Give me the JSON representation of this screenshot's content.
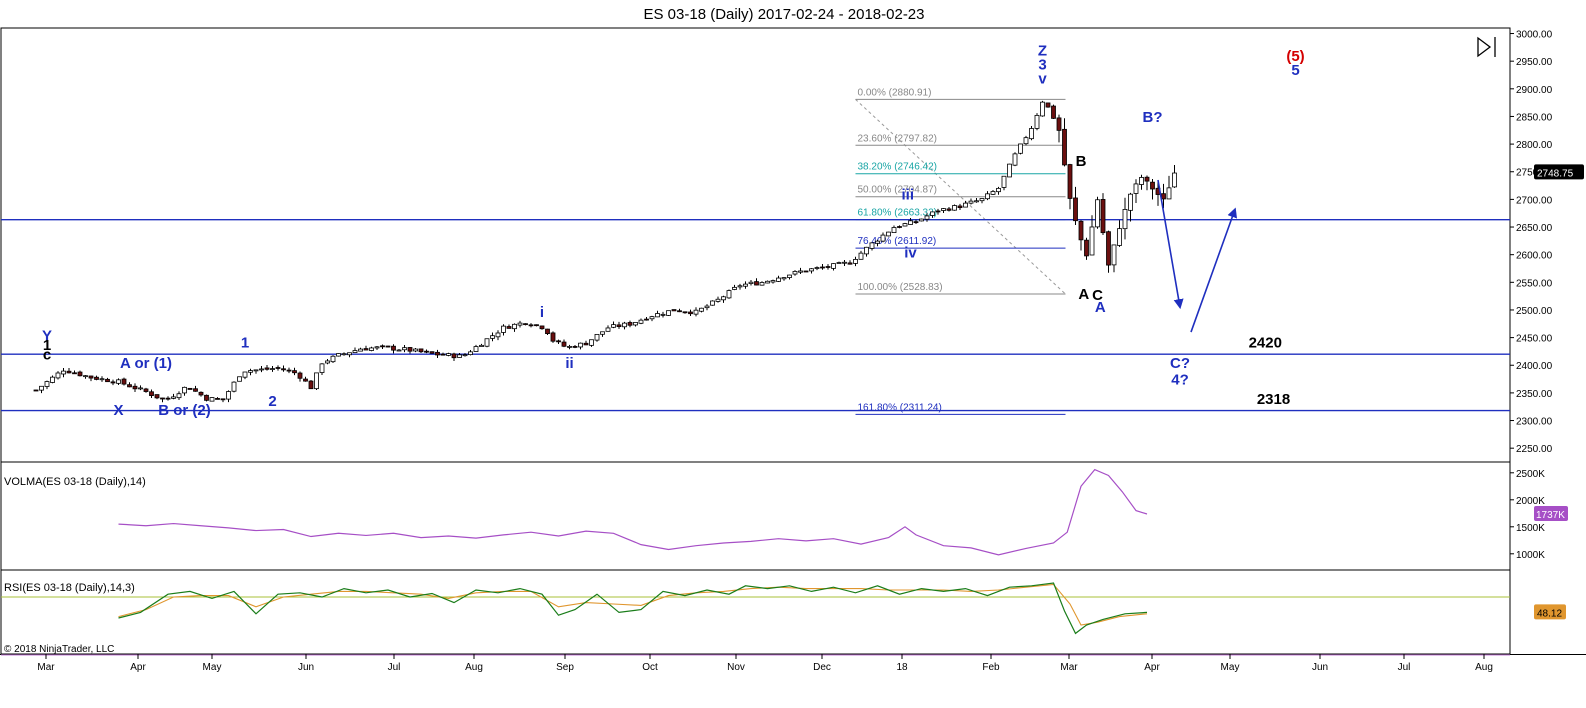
{
  "title": "ES 03-18 (Daily)  2017-02-24 - 2018-02-23",
  "copyright": "© 2018 NinjaTrader, LLC",
  "colors": {
    "wave_label": "#1f2fbf",
    "wave_label_red": "#d40000",
    "hline": "#1f2fbf",
    "fib_gray": "#888888",
    "fib_teal": "#19a5a5",
    "volma": "#a64fc6",
    "rsi_green": "#1a7d1a",
    "rsi_orange": "#e0962e",
    "rsi_upper": "#a8c23a",
    "rsi_lower": "#c47ad8",
    "candle_up": "#ffffff",
    "candle_down": "#6b0f0f"
  },
  "chart_data": [
    {
      "type": "candlestick",
      "title": "ES 03-18 (Daily)  2017-02-24 - 2018-02-23",
      "price_axis": {
        "ylim": [
          2225,
          3010
        ],
        "ticks": [
          "3000.00",
          "2950.00",
          "2900.00",
          "2850.00",
          "2800.00",
          "2750.00",
          "2700.00",
          "2650.00",
          "2600.00",
          "2550.00",
          "2500.00",
          "2450.00",
          "2400.00",
          "2350.00",
          "2300.00",
          "2250.00"
        ],
        "last_price_label": "2748.75",
        "last_price": 2748.75
      },
      "x_axis": {
        "ticks": [
          "Mar",
          "Apr",
          "May",
          "Jun",
          "Jul",
          "Aug",
          "Sep",
          "Oct",
          "Nov",
          "Dec",
          "18",
          "Feb",
          "Mar",
          "Apr",
          "May",
          "Jun",
          "Jul",
          "Aug"
        ]
      },
      "close_path": [
        [
          0,
          2355
        ],
        [
          10,
          2392
        ],
        [
          20,
          2378
        ],
        [
          30,
          2370
        ],
        [
          40,
          2352
        ],
        [
          47,
          2336
        ],
        [
          55,
          2362
        ],
        [
          62,
          2340
        ],
        [
          68,
          2338
        ],
        [
          75,
          2390
        ],
        [
          82,
          2392
        ],
        [
          88,
          2395
        ],
        [
          95,
          2385
        ],
        [
          100,
          2360
        ],
        [
          104,
          2405
        ],
        [
          110,
          2418
        ],
        [
          118,
          2430
        ],
        [
          126,
          2432
        ],
        [
          135,
          2428
        ],
        [
          145,
          2420
        ],
        [
          155,
          2416
        ],
        [
          162,
          2440
        ],
        [
          170,
          2468
        ],
        [
          178,
          2478
        ],
        [
          185,
          2468
        ],
        [
          188,
          2445
        ],
        [
          193,
          2432
        ],
        [
          200,
          2440
        ],
        [
          208,
          2468
        ],
        [
          216,
          2475
        ],
        [
          224,
          2490
        ],
        [
          232,
          2500
        ],
        [
          240,
          2496
        ],
        [
          248,
          2518
        ],
        [
          256,
          2545
        ],
        [
          264,
          2550
        ],
        [
          272,
          2562
        ],
        [
          280,
          2572
        ],
        [
          288,
          2578
        ],
        [
          296,
          2586
        ],
        [
          304,
          2620
        ],
        [
          312,
          2650
        ],
        [
          320,
          2660
        ],
        [
          328,
          2680
        ],
        [
          336,
          2688
        ],
        [
          344,
          2700
        ],
        [
          350,
          2720
        ],
        [
          356,
          2780
        ],
        [
          362,
          2830
        ],
        [
          366,
          2878
        ],
        [
          369,
          2860
        ],
        [
          372,
          2825
        ],
        [
          376,
          2700
        ],
        [
          379,
          2640
        ],
        [
          382,
          2600
        ],
        [
          386,
          2700
        ],
        [
          390,
          2580
        ],
        [
          394,
          2650
        ],
        [
          398,
          2710
        ],
        [
          402,
          2740
        ],
        [
          406,
          2720
        ],
        [
          410,
          2698
        ],
        [
          414,
          2748
        ]
      ],
      "horizontal_lines": [
        {
          "price": 2663.32
        },
        {
          "price": 2420
        },
        {
          "price": 2318
        }
      ],
      "fibonacci": [
        {
          "label": "0.00% (2880.91)",
          "price": 2880.91
        },
        {
          "label": "23.60% (2797.82)",
          "price": 2797.82
        },
        {
          "label": "38.20% (2746.42)",
          "price": 2746.42
        },
        {
          "label": "50.00% (2704.87)",
          "price": 2704.87
        },
        {
          "label": "61.80% (2663.32)",
          "price": 2663.32
        },
        {
          "label": "76.40% (2611.92)",
          "price": 2611.92
        },
        {
          "label": "100.00% (2528.83)",
          "price": 2528.83
        },
        {
          "label": "161.80% (2311.24)",
          "price": 2311.24
        }
      ],
      "annotations": [
        {
          "text": "Y",
          "day": 4,
          "price": 2445,
          "color": "blue"
        },
        {
          "text": "1",
          "day": 4,
          "price": 2428,
          "color": "black"
        },
        {
          "text": "c",
          "day": 4,
          "price": 2410,
          "color": "black"
        },
        {
          "text": "A or (1)",
          "day": 40,
          "price": 2395,
          "color": "blue"
        },
        {
          "text": "X",
          "day": 30,
          "price": 2310,
          "color": "blue"
        },
        {
          "text": "B or (2)",
          "day": 54,
          "price": 2310,
          "color": "blue"
        },
        {
          "text": "1",
          "day": 76,
          "price": 2432,
          "color": "blue"
        },
        {
          "text": "2",
          "day": 86,
          "price": 2326,
          "color": "blue"
        },
        {
          "text": "i",
          "day": 184,
          "price": 2487,
          "color": "blue"
        },
        {
          "text": "ii",
          "day": 194,
          "price": 2395,
          "color": "blue"
        },
        {
          "text": "iii",
          "day": 317,
          "price": 2700,
          "color": "blue"
        },
        {
          "text": "iv",
          "day": 318,
          "price": 2595,
          "color": "blue"
        },
        {
          "text": "Z",
          "day": 366,
          "price": 2960,
          "color": "blue"
        },
        {
          "text": "3",
          "day": 366,
          "price": 2935,
          "color": "blue"
        },
        {
          "text": "v",
          "day": 366,
          "price": 2910,
          "color": "blue"
        },
        {
          "text": "B",
          "day": 380,
          "price": 2760,
          "color": "black"
        },
        {
          "text": "A",
          "day": 381,
          "price": 2520,
          "color": "black"
        },
        {
          "text": "C",
          "day": 386,
          "price": 2518,
          "color": "black"
        },
        {
          "text": "A",
          "day": 387,
          "price": 2496,
          "color": "blue"
        },
        {
          "text": "B?",
          "day": 406,
          "price": 2840,
          "color": "blue"
        },
        {
          "text": "(5)",
          "day": 458,
          "price": 2950,
          "color": "red"
        },
        {
          "text": "5",
          "day": 458,
          "price": 2925,
          "color": "blue"
        },
        {
          "text": "2420",
          "day": 447,
          "price": 2432,
          "color": "black"
        },
        {
          "text": "C?",
          "day": 416,
          "price": 2395,
          "color": "blue"
        },
        {
          "text": "4?",
          "day": 416,
          "price": 2365,
          "color": "blue"
        },
        {
          "text": "2318",
          "day": 450,
          "price": 2330,
          "color": "black"
        }
      ],
      "arrows": [
        {
          "from_day": 408,
          "from_price": 2735,
          "to_day": 416,
          "to_price": 2505
        },
        {
          "from_day": 420,
          "from_price": 2460,
          "to_day": 436,
          "to_price": 2682
        }
      ]
    },
    {
      "type": "line",
      "title": "VOLMA(ES 03-18 (Daily),14)",
      "ylim": [
        700,
        2700
      ],
      "ticks": [
        "2500K",
        "2000K",
        "1500K",
        "1000K"
      ],
      "last_value_label": "1737K",
      "series": [
        {
          "values": [
            [
              30,
              1550
            ],
            [
              40,
              1520
            ],
            [
              50,
              1560
            ],
            [
              60,
              1520
            ],
            [
              70,
              1480
            ],
            [
              80,
              1430
            ],
            [
              90,
              1450
            ],
            [
              100,
              1320
            ],
            [
              110,
              1380
            ],
            [
              120,
              1340
            ],
            [
              130,
              1380
            ],
            [
              140,
              1300
            ],
            [
              150,
              1330
            ],
            [
              160,
              1290
            ],
            [
              170,
              1350
            ],
            [
              180,
              1400
            ],
            [
              190,
              1330
            ],
            [
              200,
              1420
            ],
            [
              210,
              1380
            ],
            [
              220,
              1170
            ],
            [
              230,
              1080
            ],
            [
              240,
              1150
            ],
            [
              250,
              1200
            ],
            [
              260,
              1230
            ],
            [
              270,
              1280
            ],
            [
              280,
              1240
            ],
            [
              290,
              1280
            ],
            [
              300,
              1180
            ],
            [
              310,
              1300
            ],
            [
              316,
              1500
            ],
            [
              320,
              1350
            ],
            [
              330,
              1150
            ],
            [
              340,
              1110
            ],
            [
              350,
              980
            ],
            [
              360,
              1100
            ],
            [
              370,
              1200
            ],
            [
              375,
              1400
            ],
            [
              380,
              2250
            ],
            [
              385,
              2560
            ],
            [
              390,
              2450
            ],
            [
              395,
              2150
            ],
            [
              400,
              1800
            ],
            [
              404,
              1737
            ]
          ]
        }
      ]
    },
    {
      "type": "line",
      "title": "RSI(ES 03-18 (Daily),14,3)",
      "ylim": [
        0,
        100
      ],
      "last_value_label": "48.12",
      "levels": [
        70,
        30
      ],
      "series": [
        {
          "values": [
            [
              30,
              40
            ],
            [
              38,
              48
            ],
            [
              48,
              74
            ],
            [
              56,
              78
            ],
            [
              64,
              68
            ],
            [
              72,
              78
            ],
            [
              80,
              46
            ],
            [
              88,
              74
            ],
            [
              96,
              76
            ],
            [
              104,
              70
            ],
            [
              112,
              82
            ],
            [
              120,
              76
            ],
            [
              128,
              80
            ],
            [
              136,
              70
            ],
            [
              144,
              75
            ],
            [
              152,
              62
            ],
            [
              160,
              80
            ],
            [
              168,
              76
            ],
            [
              176,
              82
            ],
            [
              184,
              74
            ],
            [
              190,
              44
            ],
            [
              196,
              52
            ],
            [
              204,
              74
            ],
            [
              212,
              48
            ],
            [
              220,
              52
            ],
            [
              228,
              78
            ],
            [
              236,
              72
            ],
            [
              244,
              80
            ],
            [
              252,
              74
            ],
            [
              258,
              86
            ],
            [
              266,
              82
            ],
            [
              274,
              86
            ],
            [
              282,
              78
            ],
            [
              290,
              84
            ],
            [
              298,
              76
            ],
            [
              306,
              86
            ],
            [
              314,
              74
            ],
            [
              322,
              82
            ],
            [
              330,
              78
            ],
            [
              338,
              82
            ],
            [
              346,
              72
            ],
            [
              354,
              84
            ],
            [
              362,
              86
            ],
            [
              370,
              90
            ],
            [
              374,
              50
            ],
            [
              378,
              18
            ],
            [
              382,
              30
            ],
            [
              388,
              38
            ],
            [
              396,
              46
            ],
            [
              404,
              48
            ]
          ]
        },
        {
          "values": [
            [
              30,
              42
            ],
            [
              40,
              52
            ],
            [
              50,
              70
            ],
            [
              60,
              72
            ],
            [
              70,
              72
            ],
            [
              80,
              56
            ],
            [
              90,
              70
            ],
            [
              100,
              74
            ],
            [
              110,
              78
            ],
            [
              120,
              78
            ],
            [
              130,
              76
            ],
            [
              140,
              74
            ],
            [
              150,
              68
            ],
            [
              160,
              76
            ],
            [
              170,
              78
            ],
            [
              180,
              78
            ],
            [
              190,
              56
            ],
            [
              200,
              62
            ],
            [
              210,
              60
            ],
            [
              220,
              58
            ],
            [
              230,
              72
            ],
            [
              240,
              76
            ],
            [
              250,
              78
            ],
            [
              260,
              82
            ],
            [
              270,
              84
            ],
            [
              280,
              82
            ],
            [
              290,
              82
            ],
            [
              300,
              82
            ],
            [
              310,
              80
            ],
            [
              320,
              80
            ],
            [
              330,
              80
            ],
            [
              340,
              78
            ],
            [
              350,
              80
            ],
            [
              360,
              84
            ],
            [
              370,
              88
            ],
            [
              376,
              60
            ],
            [
              380,
              30
            ],
            [
              386,
              34
            ],
            [
              394,
              42
            ],
            [
              404,
              46
            ]
          ]
        }
      ]
    }
  ]
}
